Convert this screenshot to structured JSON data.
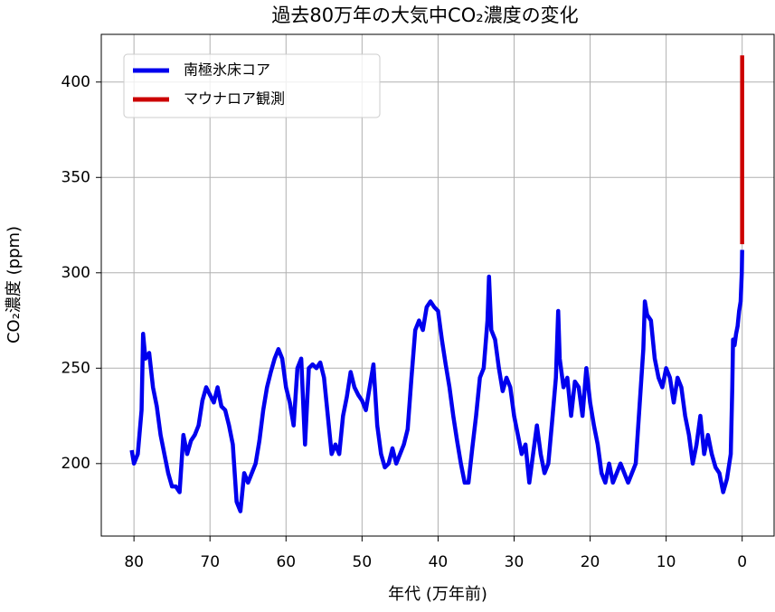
{
  "chart_data": {
    "type": "line",
    "title": "過去80万年の大気中CO₂濃度の変化",
    "xlabel": "年代 (万年前)",
    "ylabel": "CO₂濃度 (ppm)",
    "xlim": [
      84.3,
      -4.2
    ],
    "ylim": [
      162,
      425
    ],
    "xticks": [
      80,
      70,
      60,
      50,
      40,
      30,
      20,
      10,
      0
    ],
    "yticks": [
      200,
      250,
      300,
      350,
      400
    ],
    "grid": true,
    "legend": "upper left",
    "series": [
      {
        "name": "南極氷床コア",
        "color": "#0000ee",
        "x": [
          80.3,
          80,
          79.5,
          79,
          78.8,
          78.5,
          78,
          77.5,
          77,
          76.5,
          76,
          75.5,
          75,
          74.5,
          74,
          73.5,
          73,
          72.5,
          72,
          71.5,
          71,
          70.5,
          70,
          69.5,
          69,
          68.5,
          68,
          67.5,
          67,
          66.5,
          66,
          65.5,
          65,
          64.5,
          64,
          63.5,
          63,
          62.5,
          62,
          61.5,
          61,
          60.5,
          60,
          59.5,
          59,
          58.5,
          58,
          57.5,
          57,
          56.5,
          56,
          55.5,
          55,
          54.5,
          54,
          53.5,
          53,
          52.5,
          52,
          51.5,
          51,
          50.5,
          50,
          49.5,
          49,
          48.5,
          48,
          47.5,
          47,
          46.5,
          46,
          45.5,
          45,
          44.5,
          44,
          43.5,
          43,
          42.5,
          42,
          41.5,
          41,
          40.5,
          40,
          39.5,
          39,
          38.5,
          38,
          37.5,
          37,
          36.5,
          36,
          35.5,
          35,
          34.5,
          34,
          33.5,
          33.3,
          33,
          32.5,
          32,
          31.5,
          31,
          30.5,
          30,
          29.5,
          29,
          28.5,
          28,
          27.5,
          27,
          26.5,
          26,
          25.5,
          25,
          24.5,
          24.2,
          24,
          23.5,
          23,
          22.5,
          22,
          21.5,
          21,
          20.5,
          20,
          19.5,
          19,
          18.5,
          18,
          17.5,
          17,
          16.5,
          16,
          15.5,
          15,
          14.5,
          14,
          13.5,
          13,
          12.8,
          12.5,
          12,
          11.5,
          11,
          10.5,
          10,
          9.5,
          9,
          8.5,
          8,
          7.5,
          7,
          6.5,
          6,
          5.5,
          5,
          4.5,
          4,
          3.5,
          3,
          2.5,
          2,
          1.5,
          1.3,
          1.2,
          1,
          0.8,
          0.6,
          0.4,
          0.2,
          0.05,
          0
        ],
        "values": [
          207,
          200,
          205,
          228,
          268,
          255,
          258,
          240,
          230,
          215,
          205,
          195,
          188,
          188,
          185,
          215,
          205,
          212,
          215,
          220,
          233,
          240,
          236,
          232,
          240,
          230,
          228,
          220,
          210,
          180,
          175,
          195,
          190,
          195,
          200,
          212,
          228,
          240,
          248,
          255,
          260,
          255,
          240,
          232,
          220,
          250,
          255,
          210,
          250,
          252,
          250,
          253,
          245,
          225,
          205,
          210,
          205,
          225,
          235,
          248,
          240,
          236,
          233,
          228,
          240,
          252,
          220,
          205,
          198,
          200,
          208,
          200,
          205,
          210,
          218,
          245,
          270,
          275,
          270,
          282,
          285,
          282,
          280,
          265,
          252,
          240,
          225,
          212,
          200,
          190,
          190,
          208,
          225,
          245,
          250,
          275,
          298,
          270,
          265,
          250,
          238,
          245,
          240,
          225,
          215,
          205,
          210,
          190,
          205,
          220,
          205,
          195,
          200,
          222,
          245,
          280,
          255,
          240,
          245,
          225,
          243,
          240,
          225,
          250,
          232,
          220,
          210,
          195,
          190,
          200,
          190,
          195,
          200,
          195,
          190,
          195,
          200,
          230,
          260,
          285,
          278,
          275,
          255,
          245,
          240,
          250,
          245,
          232,
          245,
          240,
          225,
          215,
          200,
          210,
          225,
          205,
          215,
          205,
          198,
          195,
          185,
          192,
          205,
          240,
          265,
          262,
          268,
          272,
          280,
          285,
          300,
          312
        ]
      },
      {
        "name": "マウナロア観測",
        "color": "#cc0000",
        "x": [
          0.0062,
          0.005,
          0.004,
          0.003,
          0.002,
          0.001,
          0
        ],
        "values": [
          315,
          325,
          338,
          354,
          370,
          390,
          414
        ]
      }
    ]
  }
}
